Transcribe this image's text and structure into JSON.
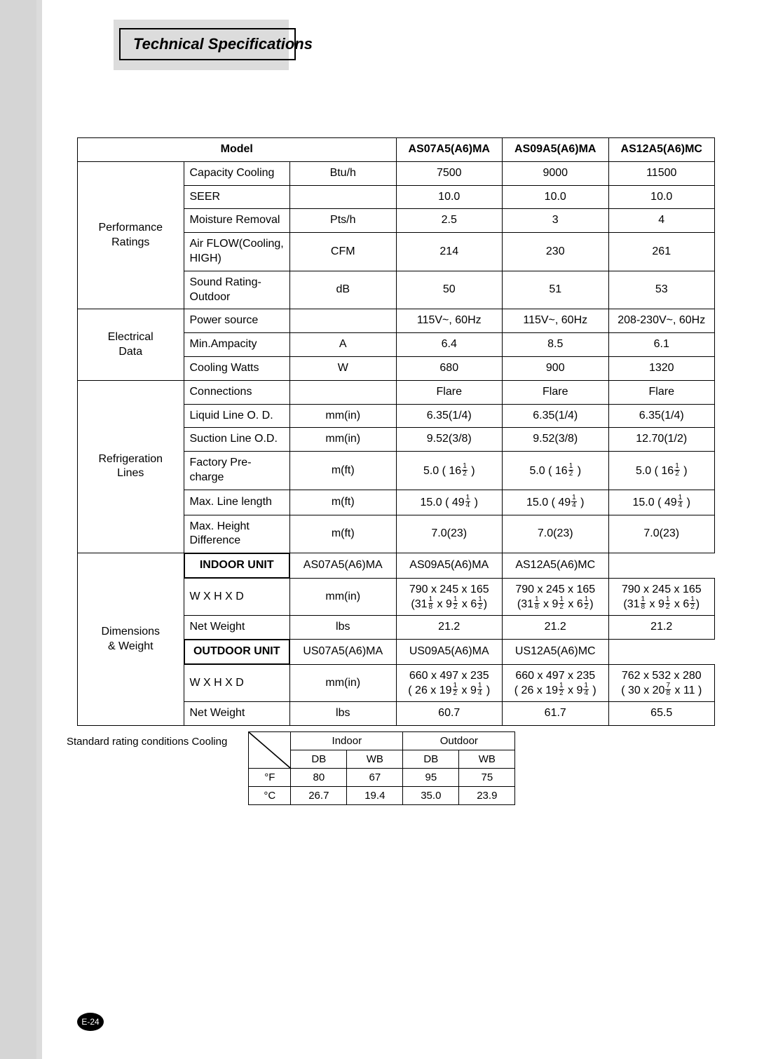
{
  "title": "Technical Specifications",
  "page_number": "E-24",
  "main_table": {
    "model_header": "Model",
    "model_codes": [
      "AS07A5(A6)MA",
      "AS09A5(A6)MA",
      "AS12A5(A6)MC"
    ],
    "sections": [
      {
        "category": "Performance Ratings",
        "rows": [
          {
            "label": "Capacity Cooling",
            "unit": "Btu/h",
            "vals": [
              "7500",
              "9000",
              "11500"
            ]
          },
          {
            "label": "SEER",
            "unit": "",
            "vals": [
              "10.0",
              "10.0",
              "10.0"
            ]
          },
          {
            "label": "Moisture Removal",
            "unit": "Pts/h",
            "vals": [
              "2.5",
              "3",
              "4"
            ]
          },
          {
            "label": "Air FLOW(Cooling, HIGH)",
            "unit": "CFM",
            "vals": [
              "214",
              "230",
              "261"
            ]
          },
          {
            "label": "Sound Rating-Outdoor",
            "unit": "dB",
            "vals": [
              "50",
              "51",
              "53"
            ]
          }
        ]
      },
      {
        "category": "Electrical Data",
        "rows": [
          {
            "label": "Power source",
            "unit": "",
            "vals": [
              "115V~, 60Hz",
              "115V~, 60Hz",
              "208-230V~, 60Hz"
            ]
          },
          {
            "label": "Min.Ampacity",
            "unit": "A",
            "vals": [
              "6.4",
              "8.5",
              "6.1"
            ]
          },
          {
            "label": "Cooling Watts",
            "unit": "W",
            "vals": [
              "680",
              "900",
              "1320"
            ]
          }
        ]
      },
      {
        "category": "Refrigeration Lines",
        "rows": [
          {
            "label": "Connections",
            "unit": "",
            "vals": [
              "Flare",
              "Flare",
              "Flare"
            ]
          },
          {
            "label": "Liquid Line O. D.",
            "unit": "mm(in)",
            "vals": [
              "6.35(1/4)",
              "6.35(1/4)",
              "6.35(1/4)"
            ]
          },
          {
            "label": "Suction Line O.D.",
            "unit": "mm(in)",
            "vals": [
              "9.52(3/8)",
              "9.52(3/8)",
              "12.70(1/2)"
            ]
          },
          {
            "label": "Factory Pre-charge",
            "unit": "m(ft)",
            "frac_vals": [
              {
                "pre": "5.0 ( 16",
                "n": "1",
                "d": "2",
                "post": " )"
              },
              {
                "pre": "5.0 ( 16",
                "n": "1",
                "d": "2",
                "post": " )"
              },
              {
                "pre": "5.0 ( 16",
                "n": "1",
                "d": "2",
                "post": " )"
              }
            ]
          },
          {
            "label": "Max. Line length",
            "unit": "m(ft)",
            "frac_vals": [
              {
                "pre": "15.0 ( 49",
                "n": "1",
                "d": "4",
                "post": " )"
              },
              {
                "pre": "15.0 ( 49",
                "n": "1",
                "d": "4",
                "post": " )"
              },
              {
                "pre": "15.0 ( 49",
                "n": "1",
                "d": "4",
                "post": " )"
              }
            ]
          },
          {
            "label": "Max. Height Difference",
            "unit": "m(ft)",
            "vals": [
              "7.0(23)",
              "7.0(23)",
              "7.0(23)"
            ]
          }
        ]
      }
    ],
    "dims": {
      "category": "Dimensions & Weight",
      "indoor_header": "INDOOR UNIT",
      "indoor_codes": [
        "AS07A5(A6)MA",
        "AS09A5(A6)MA",
        "AS12A5(A6)MC"
      ],
      "indoor_rows": [
        {
          "label": "W X H X D",
          "unit": "mm(in)",
          "two": [
            {
              "l1": "790 x 245 x 165",
              "l2_pre": "(31",
              "l2_fracs": [
                [
                  "1",
                  "8"
                ],
                [
                  "1",
                  "2"
                ],
                [
                  "1",
                  "2"
                ]
              ],
              "l2_seps": [
                " x  9",
                " x 6",
                ")"
              ]
            },
            {
              "l1": "790 x 245 x 165",
              "l2_pre": "(31",
              "l2_fracs": [
                [
                  "1",
                  "8"
                ],
                [
                  "1",
                  "2"
                ],
                [
                  "1",
                  "2"
                ]
              ],
              "l2_seps": [
                " x  9",
                " x 6",
                ")"
              ]
            },
            {
              "l1": "790 x 245 x 165",
              "l2_pre": "(31",
              "l2_fracs": [
                [
                  "1",
                  "8"
                ],
                [
                  "1",
                  "2"
                ],
                [
                  "1",
                  "2"
                ]
              ],
              "l2_seps": [
                " x  9",
                " x 6",
                ")"
              ]
            }
          ]
        },
        {
          "label": "Net Weight",
          "unit": "lbs",
          "vals": [
            "21.2",
            "21.2",
            "21.2"
          ]
        }
      ],
      "outdoor_header": "OUTDOOR UNIT",
      "outdoor_codes": [
        "US07A5(A6)MA",
        "US09A5(A6)MA",
        "US12A5(A6)MC"
      ],
      "outdoor_rows": [
        {
          "label": "W X H X D",
          "unit": "mm(in)",
          "two": [
            {
              "l1": "660 x 497 x 235",
              "l2_pre": "( 26 x 19",
              "l2_fracs": [
                [
                  "1",
                  "2"
                ],
                [
                  "1",
                  "4"
                ]
              ],
              "l2_seps": [
                " x 9",
                " )"
              ]
            },
            {
              "l1": "660 x 497 x 235",
              "l2_pre": "( 26 x 19",
              "l2_fracs": [
                [
                  "1",
                  "2"
                ],
                [
                  "1",
                  "4"
                ]
              ],
              "l2_seps": [
                " x 9",
                " )"
              ]
            },
            {
              "l1": "762 x 532 x 280",
              "l2_pre": "( 30 x 20",
              "l2_fracs": [
                [
                  "7",
                  "8"
                ]
              ],
              "l2_seps": [
                " x 11 )"
              ]
            }
          ]
        },
        {
          "label": "Net Weight",
          "unit": "lbs",
          "vals": [
            "60.7",
            "61.7",
            "65.5"
          ]
        }
      ]
    }
  },
  "rating": {
    "label": "Standard rating conditions     Cooling",
    "cols_top": [
      "Indoor",
      "Outdoor"
    ],
    "cols_sub": [
      "DB",
      "WB",
      "DB",
      "WB"
    ],
    "rows": [
      {
        "unit": "°F",
        "vals": [
          "80",
          "67",
          "95",
          "75"
        ]
      },
      {
        "unit": "°C",
        "vals": [
          "26.7",
          "19.4",
          "35.0",
          "23.9"
        ]
      }
    ]
  }
}
